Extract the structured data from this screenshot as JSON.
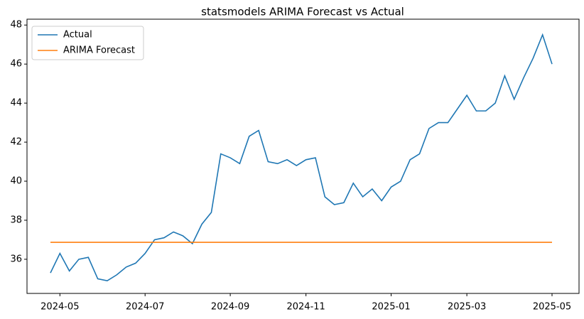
{
  "chart_data": {
    "type": "line",
    "title": "statsmodels ARIMA Forecast vs Actual",
    "categories": [
      null,
      "2024-05",
      null,
      null,
      null,
      null,
      null,
      null,
      null,
      null,
      "2024-07",
      null,
      null,
      null,
      null,
      null,
      null,
      null,
      null,
      "2024-09",
      null,
      null,
      null,
      null,
      null,
      null,
      null,
      "2024-11",
      null,
      null,
      null,
      null,
      null,
      null,
      null,
      null,
      "2025-01",
      null,
      null,
      null,
      null,
      null,
      null,
      null,
      "2025-03",
      null,
      null,
      null,
      null,
      null,
      null,
      null,
      null,
      "2025-05"
    ],
    "series": [
      {
        "name": "Actual",
        "color": "#1f77b4",
        "values": [
          35.3,
          36.3,
          35.4,
          36.0,
          36.1,
          35.0,
          34.9,
          35.2,
          35.6,
          35.8,
          36.3,
          37.0,
          37.1,
          37.4,
          37.2,
          36.8,
          37.8,
          38.4,
          41.4,
          41.2,
          40.9,
          42.3,
          42.6,
          41.0,
          40.9,
          41.1,
          40.8,
          41.1,
          41.2,
          39.2,
          38.8,
          38.9,
          39.9,
          39.2,
          39.6,
          39.0,
          39.7,
          40.0,
          41.1,
          41.4,
          42.7,
          43.0,
          43.0,
          43.7,
          44.4,
          43.6,
          43.6,
          44.0,
          45.4,
          44.2,
          45.3,
          46.3,
          47.5,
          46.0
        ]
      },
      {
        "name": "ARIMA Forecast",
        "color": "#ff7f0e",
        "values": [
          36.87,
          36.87,
          36.87,
          36.87,
          36.87,
          36.87,
          36.87,
          36.87,
          36.87,
          36.87,
          36.87,
          36.87,
          36.87,
          36.87,
          36.87,
          36.87,
          36.87,
          36.87,
          36.87,
          36.87,
          36.87,
          36.87,
          36.87,
          36.87,
          36.87,
          36.87,
          36.87,
          36.87,
          36.87,
          36.87,
          36.87,
          36.87,
          36.87,
          36.87,
          36.87,
          36.87,
          36.87,
          36.87,
          36.87,
          36.87,
          36.87,
          36.87,
          36.87,
          36.87,
          36.87,
          36.87,
          36.87,
          36.87,
          36.87,
          36.87,
          36.87,
          36.87,
          36.87,
          36.87
        ]
      }
    ],
    "ylim": [
      34.25,
      48.3
    ],
    "yticks": [
      36,
      38,
      40,
      42,
      44,
      46,
      48
    ],
    "legend": "upper left"
  }
}
